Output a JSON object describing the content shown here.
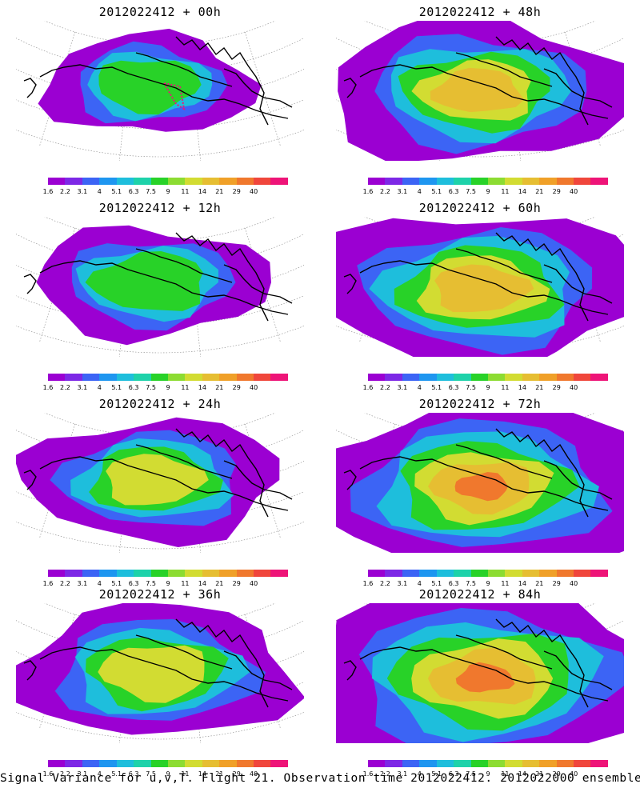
{
  "base_time": "2012022412",
  "panels": [
    {
      "title": "2012022412 + 00h",
      "lead": "00h"
    },
    {
      "title": "2012022412 + 48h",
      "lead": "48h"
    },
    {
      "title": "2012022412 + 12h",
      "lead": "12h"
    },
    {
      "title": "2012022412 + 60h",
      "lead": "60h"
    },
    {
      "title": "2012022412 + 24h",
      "lead": "24h"
    },
    {
      "title": "2012022412 + 72h",
      "lead": "72h"
    },
    {
      "title": "2012022412 + 36h",
      "lead": "36h"
    },
    {
      "title": "2012022412 + 84h",
      "lead": "84h"
    }
  ],
  "colorbar": {
    "labels": [
      "1.6",
      "2.2",
      "3.1",
      "4",
      "5.1",
      "6.3",
      "7.5",
      "9",
      "11",
      "14",
      "21",
      "29",
      "40"
    ],
    "colors": [
      "#9b00d2",
      "#7d28e6",
      "#3c64f5",
      "#1e96f0",
      "#1ebedc",
      "#1ed2aa",
      "#28d228",
      "#8cdc32",
      "#d2dc32",
      "#e6be32",
      "#f0a028",
      "#f0782d",
      "#f0463c",
      "#ee1478"
    ]
  },
  "footer": "Signal Variance for u,v,T. Flight 21. Observation time 2012022412. 2012022000 ensemble."
}
